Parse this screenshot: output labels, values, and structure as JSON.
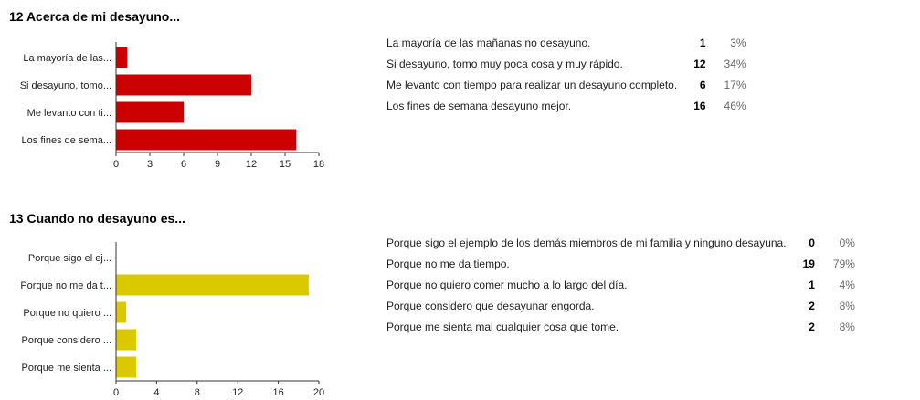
{
  "questions": [
    {
      "title": "12 Acerca de mi desayuno...",
      "bar_color": "#cc0000",
      "responses": [
        {
          "text": "La mayoría de las mañanas no desayuno.",
          "count": "1",
          "pct": "3%"
        },
        {
          "text": "Si desayuno, tomo muy poca cosa y muy rápido.",
          "count": "12",
          "pct": "34%"
        },
        {
          "text": "Me levanto con tiempo para realizar un desayuno completo.",
          "count": "6",
          "pct": "17%"
        },
        {
          "text": "Los fines de semana desayuno mejor.",
          "count": "16",
          "pct": "46%"
        }
      ]
    },
    {
      "title": "13 Cuando no desayuno es...",
      "bar_color": "#dbc900",
      "responses": [
        {
          "text": "Porque sigo el ejemplo de los demás miembros de mi familia y ninguno desayuna.",
          "count": "0",
          "pct": "0%"
        },
        {
          "text": "Porque no me da tiempo.",
          "count": "19",
          "pct": "79%"
        },
        {
          "text": "Porque no quiero comer mucho a lo largo del día.",
          "count": "1",
          "pct": "4%"
        },
        {
          "text": "Porque considero que desayunar engorda.",
          "count": "2",
          "pct": "8%"
        },
        {
          "text": "Porque me sienta mal cualquier cosa que tome.",
          "count": "2",
          "pct": "8%"
        }
      ]
    }
  ],
  "chart_data": [
    {
      "type": "bar",
      "orientation": "horizontal",
      "title": "12 Acerca de mi desayuno...",
      "categories": [
        "La mayoría de las...",
        "Si desayuno, tomo...",
        "Me levanto con ti...",
        "Los fines de sema..."
      ],
      "values": [
        1,
        12,
        6,
        16
      ],
      "xlim": [
        0,
        18
      ],
      "ticks": [
        0,
        3,
        6,
        9,
        12,
        15,
        18
      ],
      "color": "#cc0000"
    },
    {
      "type": "bar",
      "orientation": "horizontal",
      "title": "13 Cuando no desayuno es...",
      "categories": [
        "Porque sigo el ej...",
        "Porque no me da t...",
        "Porque no quiero ...",
        "Porque considero ...",
        "Porque me sienta ..."
      ],
      "values": [
        0,
        19,
        1,
        2,
        2
      ],
      "xlim": [
        0,
        20
      ],
      "ticks": [
        0,
        4,
        8,
        12,
        16,
        20
      ],
      "color": "#dbc900"
    }
  ]
}
